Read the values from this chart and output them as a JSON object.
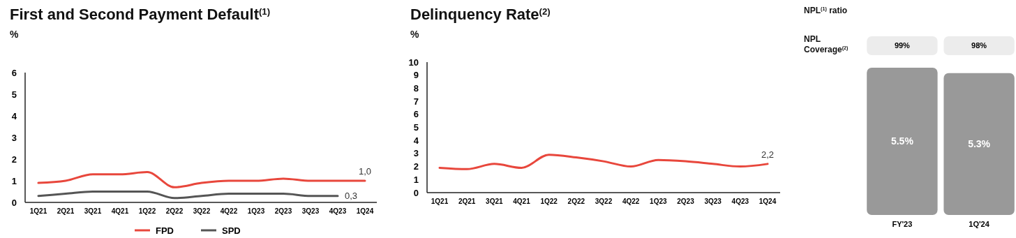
{
  "chart_data": [
    {
      "type": "line",
      "title": "First and Second Payment Default$^{(1)}$",
      "ylabel": "%",
      "categories": [
        "1Q21",
        "2Q21",
        "3Q21",
        "4Q21",
        "1Q22",
        "2Q22",
        "3Q22",
        "4Q22",
        "1Q23",
        "2Q23",
        "3Q23",
        "4Q23",
        "1Q24"
      ],
      "series": [
        {
          "name": "FPD",
          "color": "#e8473c",
          "values": [
            0.9,
            1.0,
            1.3,
            1.3,
            1.4,
            0.7,
            0.9,
            1.0,
            1.0,
            1.1,
            1.0,
            1.0,
            1.0
          ],
          "value_labels": [
            null,
            null,
            null,
            null,
            null,
            null,
            null,
            null,
            null,
            null,
            null,
            null,
            "1,0"
          ]
        },
        {
          "name": "SPD",
          "color": "#555555",
          "values": [
            0.3,
            0.4,
            0.5,
            0.5,
            0.5,
            0.2,
            0.3,
            0.4,
            0.4,
            0.4,
            0.3,
            0.3,
            null
          ],
          "value_labels": [
            null,
            null,
            null,
            null,
            null,
            null,
            null,
            null,
            null,
            null,
            null,
            "0,3",
            null
          ]
        }
      ],
      "ylim": [
        0,
        6
      ],
      "yticks": [
        0,
        1,
        2,
        3,
        4,
        5,
        6
      ],
      "legend": "bottom",
      "grid": false,
      "marker": "none",
      "line_style": "solid"
    },
    {
      "type": "line",
      "title": "Delinquency Rate$^{(2)}$",
      "ylabel": "%",
      "categories": [
        "1Q21",
        "2Q21",
        "3Q21",
        "4Q21",
        "1Q22",
        "2Q22",
        "3Q22",
        "4Q22",
        "1Q23",
        "2Q23",
        "3Q23",
        "4Q23",
        "1Q24"
      ],
      "series": [
        {
          "color": "#e8473c",
          "values": [
            1.9,
            1.8,
            2.2,
            1.9,
            2.9,
            2.7,
            2.4,
            2.0,
            2.5,
            2.4,
            2.2,
            2.0,
            2.2
          ],
          "value_labels": [
            null,
            null,
            null,
            null,
            null,
            null,
            null,
            null,
            null,
            null,
            null,
            null,
            "2,2"
          ]
        }
      ],
      "ylim": [
        0,
        10
      ],
      "yticks": [
        0,
        1,
        2,
        3,
        4,
        5,
        6,
        7,
        8,
        9,
        10
      ],
      "legend": false,
      "grid": false,
      "marker": "none",
      "line_style": "solid"
    },
    {
      "type": "bar",
      "title": "NPL$^{(1)}$ ratio",
      "categories": [
        "FY'23",
        "1Q'24"
      ],
      "values": [
        5.5,
        5.3
      ],
      "color": "#999999",
      "value_labels": [
        "5.5%",
        "5.3%"
      ],
      "annotations": [
        "NPL Coverage$^{(2)}$",
        "99%",
        "98%"
      ]
    }
  ]
}
